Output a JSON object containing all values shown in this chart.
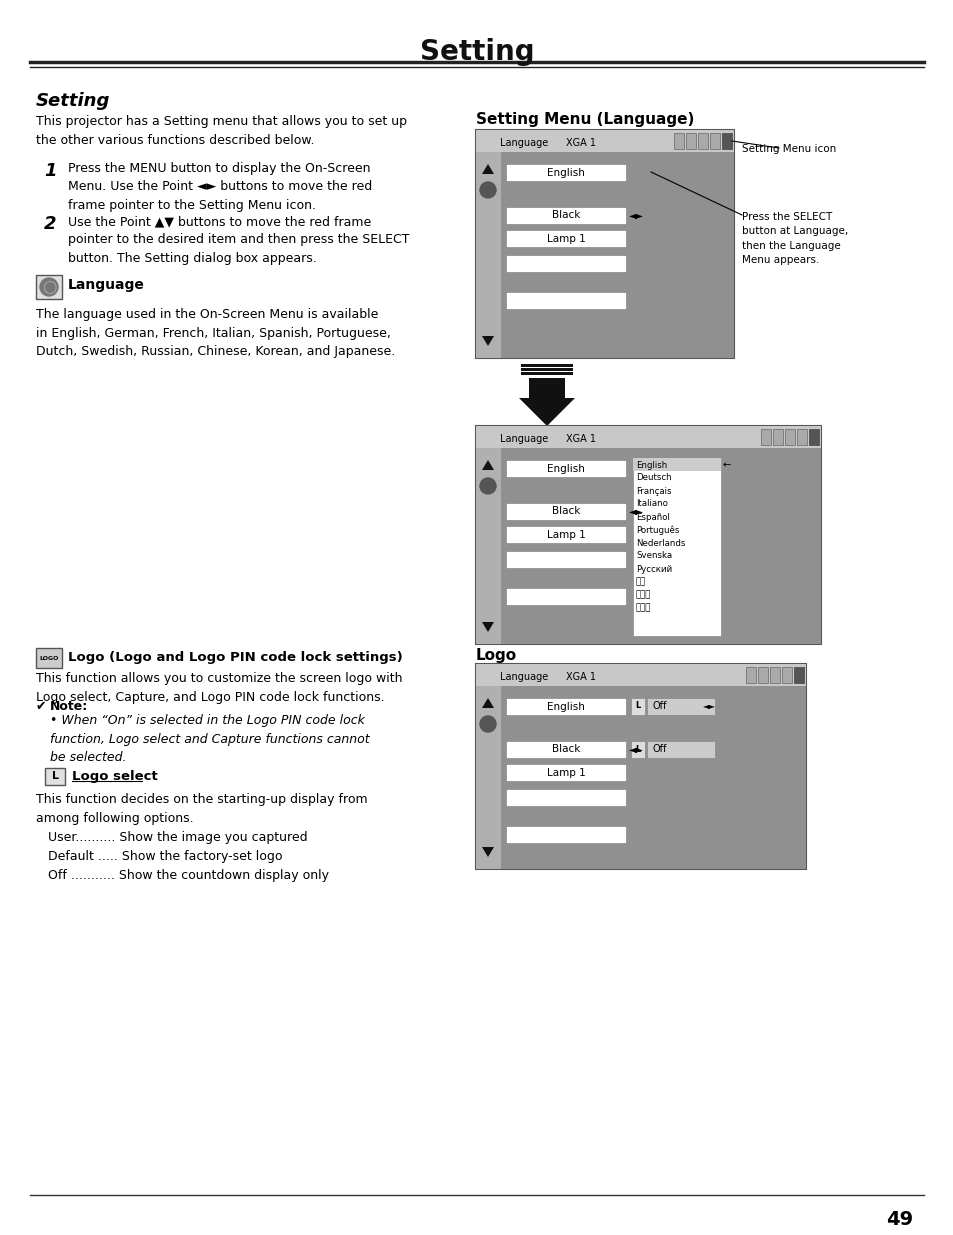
{
  "title": "Setting",
  "subtitle": "Setting",
  "bg_color": "#ffffff",
  "text_color": "#000000",
  "page_number": "49",
  "section_title": "Setting Menu (Language)",
  "section_title2": "Logo",
  "intro_text": "This projector has a Setting menu that allows you to set up\nthe other various functions described below.",
  "step1_num": "1",
  "step1_text": "Press the MENU button to display the On-Screen\nMenu. Use the Point ◄► buttons to move the red\nframe pointer to the Setting Menu icon.",
  "step2_num": "2",
  "step2_text": "Use the Point ▲▼ buttons to move the red frame\npointer to the desired item and then press the SELECT\nbutton. The Setting dialog box appears.",
  "language_label": "Language",
  "language_text": "The language used in the On-Screen Menu is available\nin English, German, French, Italian, Spanish, Portuguese,\nDutch, Swedish, Russian, Chinese, Korean, and Japanese.",
  "menu_annotation": "Setting Menu icon",
  "menu_annotation2": "Press the SELECT\nbutton at Language,\nthen the Language\nMenu appears.",
  "lang_list": [
    "English",
    "Deutsch",
    "Français",
    "Italiano",
    "Español",
    "Português",
    "Nederlands",
    "Svenska",
    "Русский",
    "中文",
    "한국어",
    "日本語"
  ],
  "logo_section_title": "Logo (Logo and Logo PIN code lock settings)",
  "logo_text": "This function allows you to customize the screen logo with\nLogo select, Capture, and Logo PIN code lock functions.",
  "note_text": "Note:",
  "note_bullet": "When “On” is selected in the Logo PIN code lock\nfunction, Logo select and Capture functions cannot\nbe selected.",
  "logo_select_label": "Logo select",
  "logo_select_text": "This function decides on the starting-up display from\namong following options.\n   User.......... Show the image you captured\n   Default ..... Show the factory-set logo\n   Off ........... Show the countdown display only"
}
